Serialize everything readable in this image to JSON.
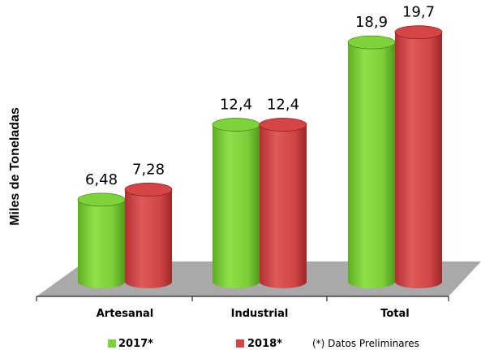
{
  "chart_data": {
    "type": "bar",
    "style": "3d-cylinder",
    "ylabel": "Miles de Toneladas",
    "categories": [
      "Artesanal",
      "Industrial",
      "Total"
    ],
    "series": [
      {
        "name": "2017*",
        "color": "#7ed23a",
        "values": [
          6.48,
          12.4,
          18.9
        ],
        "labels": [
          "6,48",
          "12,4",
          "18,9"
        ]
      },
      {
        "name": "2018*",
        "color": "#d64545",
        "values": [
          7.28,
          12.4,
          19.7
        ],
        "labels": [
          "7,28",
          "12,4",
          "19,7"
        ]
      }
    ],
    "ylim": [
      0,
      20
    ],
    "grid": false,
    "legend_position": "bottom",
    "note": "(*) Datos Preliminares",
    "floor_color": "#a9a9a9"
  }
}
